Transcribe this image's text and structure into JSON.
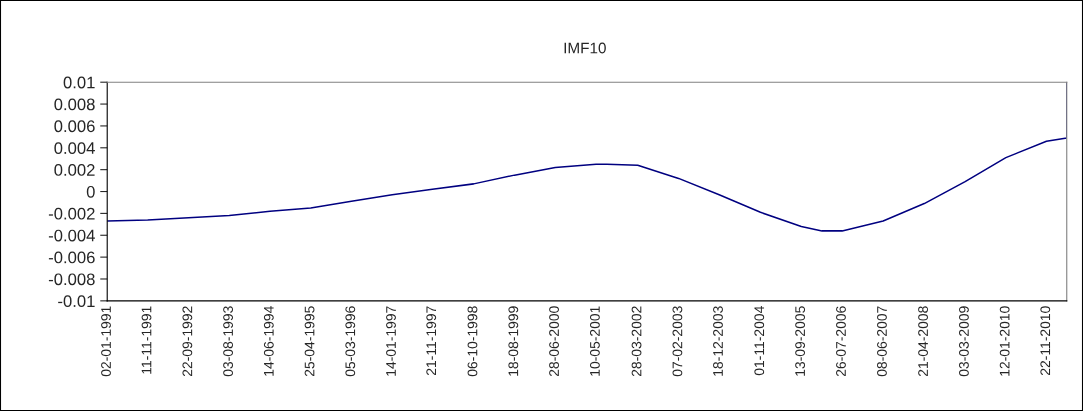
{
  "chart_data": {
    "type": "line",
    "title": "IMF10",
    "x": [
      "1991-01-02",
      "1991-11-11",
      "1992-09-22",
      "1993-08-03",
      "1994-06-14",
      "1995-04-25",
      "1996-03-05",
      "1997-01-14",
      "1997-11-21",
      "1998-10-06",
      "1999-08-18",
      "2000-06-28",
      "2001-05-10",
      "2001-08-01",
      "2002-03-28",
      "2003-02-07",
      "2003-12-18",
      "2004-11-01",
      "2005-09-13",
      "2006-02-20",
      "2006-07-26",
      "2007-06-08",
      "2008-04-21",
      "2009-03-03",
      "2010-01-12",
      "2010-11-22",
      "2011-04-28",
      "2011-04-28"
    ],
    "series": [
      {
        "color": "#000080",
        "values": [
          -0.0027,
          -0.0026,
          -0.0024,
          -0.0022,
          -0.0018,
          -0.0015,
          -0.0009,
          -0.0003,
          0.0002,
          0.0007,
          0.0015,
          0.0022,
          0.0025,
          0.0025,
          0.0024,
          0.0012,
          -0.0003,
          -0.0019,
          -0.0032,
          -0.0036,
          -0.0036,
          -0.0027,
          -0.0011,
          0.0009,
          0.0031,
          0.0046,
          0.0049,
          0.01
        ]
      }
    ],
    "xlim": [
      "1991-01-02",
      "2011-04-28"
    ],
    "xticks": [
      {
        "value": "1991-01-02",
        "label": "02-01-1991"
      },
      {
        "value": "1991-11-11",
        "label": "11-11-1991"
      },
      {
        "value": "1992-09-22",
        "label": "22-09-1992"
      },
      {
        "value": "1993-08-03",
        "label": "03-08-1993"
      },
      {
        "value": "1994-06-14",
        "label": "14-06-1994"
      },
      {
        "value": "1995-04-25",
        "label": "25-04-1995"
      },
      {
        "value": "1996-03-05",
        "label": "05-03-1996"
      },
      {
        "value": "1997-01-14",
        "label": "14-01-1997"
      },
      {
        "value": "1997-11-21",
        "label": "21-11-1997"
      },
      {
        "value": "1998-10-06",
        "label": "06-10-1998"
      },
      {
        "value": "1999-08-18",
        "label": "18-08-1999"
      },
      {
        "value": "2000-06-28",
        "label": "28-06-2000"
      },
      {
        "value": "2001-05-10",
        "label": "10-05-2001"
      },
      {
        "value": "2002-03-28",
        "label": "28-03-2002"
      },
      {
        "value": "2003-02-07",
        "label": "07-02-2003"
      },
      {
        "value": "2003-12-18",
        "label": "18-12-2003"
      },
      {
        "value": "2004-11-01",
        "label": "01-11-2004"
      },
      {
        "value": "2005-09-13",
        "label": "13-09-2005"
      },
      {
        "value": "2006-07-26",
        "label": "26-07-2006"
      },
      {
        "value": "2007-06-08",
        "label": "08-06-2007"
      },
      {
        "value": "2008-04-21",
        "label": "21-04-2008"
      },
      {
        "value": "2009-03-03",
        "label": "03-03-2009"
      },
      {
        "value": "2010-01-12",
        "label": "12-01-2010"
      },
      {
        "value": "2010-11-22",
        "label": "22-11-2010"
      }
    ],
    "ylim": [
      -0.01,
      0.01
    ],
    "yticks": [
      {
        "value": 0.01,
        "label": "0.01"
      },
      {
        "value": 0.008,
        "label": "0.008"
      },
      {
        "value": 0.006,
        "label": "0.006"
      },
      {
        "value": 0.004,
        "label": "0.004"
      },
      {
        "value": 0.002,
        "label": "0.002"
      },
      {
        "value": 0,
        "label": "0"
      },
      {
        "value": -0.002,
        "label": "-0.002"
      },
      {
        "value": -0.004,
        "label": "-0.004"
      },
      {
        "value": -0.006,
        "label": "-0.006"
      },
      {
        "value": -0.008,
        "label": "-0.008"
      },
      {
        "value": -0.01,
        "label": "-0.01"
      }
    ],
    "grid": false,
    "marker": "none",
    "line_style": "solid"
  }
}
